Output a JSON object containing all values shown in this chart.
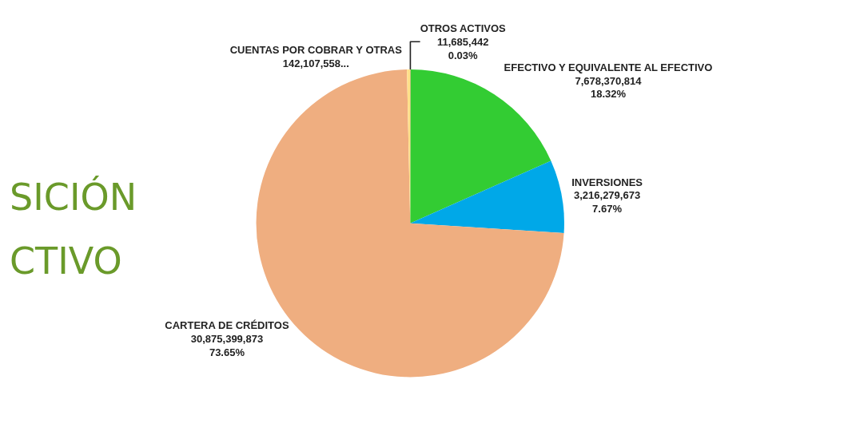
{
  "chart_data": {
    "type": "pie",
    "categories": [
      "OTROS ACTIVOS",
      "EFECTIVO Y EQUIVALENTE AL EFECTIVO",
      "INVERSIONES",
      "CARTERA DE CRÉDITOS",
      "CUENTAS POR COBRAR Y OTRAS"
    ],
    "values": [
      11685442,
      7678370814,
      3216279673,
      30875399873,
      142107558
    ],
    "colors": [
      "#ff0000",
      "#33cc33",
      "#00a8e8",
      "#efae80",
      "#ffe08a"
    ],
    "value_labels": [
      "11,685,442\n0.03%",
      "7,678,370,814\n18.32%",
      "3,216,279,673\n7.67%",
      "30,875,399,873\n73.65%",
      "142,107,558..."
    ],
    "annotations": [
      "SICIÓN",
      "CTIVO"
    ],
    "legend": false
  }
}
